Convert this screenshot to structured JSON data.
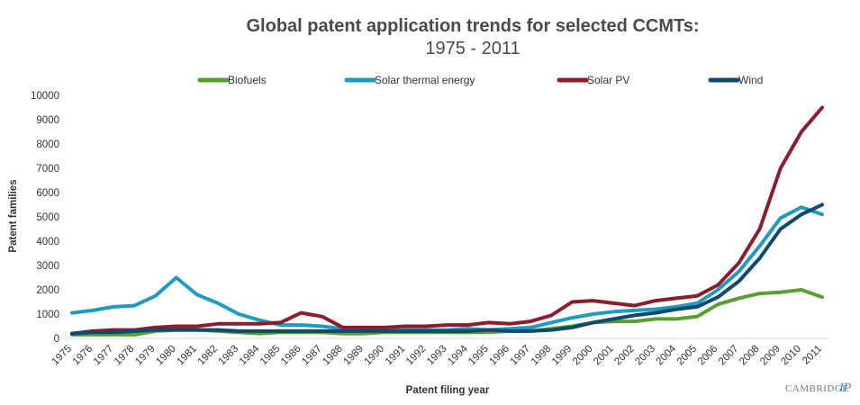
{
  "chart_data": {
    "type": "line",
    "title": "Global patent application trends for selected CCMTs:",
    "subtitle": "1975 - 2011",
    "xlabel": "Patent filing year",
    "ylabel": "Patent families",
    "ylim": [
      0,
      10000
    ],
    "yticks": [
      "0",
      "1000",
      "2000",
      "3000",
      "4000",
      "5000",
      "6000",
      "7000",
      "8000",
      "9000",
      "10000"
    ],
    "x": [
      "1975",
      "1976",
      "1977",
      "1978",
      "1979",
      "1980",
      "1981",
      "1982",
      "1983",
      "1984",
      "1985",
      "1986",
      "1987",
      "1988",
      "1989",
      "1990",
      "1991",
      "1992",
      "1993",
      "1994",
      "1995",
      "1996",
      "1997",
      "1998",
      "1999",
      "2000",
      "2001",
      "2002",
      "2003",
      "2004",
      "2005",
      "2006",
      "2007",
      "2008",
      "2009",
      "2010",
      "2011"
    ],
    "grid": false,
    "legend_position": "top",
    "series": [
      {
        "name": "Biofuels",
        "color": "#5a9e2f",
        "values": [
          150,
          150,
          150,
          150,
          300,
          350,
          350,
          300,
          250,
          200,
          250,
          250,
          250,
          200,
          200,
          250,
          250,
          250,
          250,
          250,
          250,
          300,
          300,
          400,
          500,
          650,
          700,
          700,
          800,
          800,
          900,
          1400,
          1650,
          1850,
          1900,
          2000,
          1700
        ]
      },
      {
        "name": "Solar thermal energy",
        "color": "#1f9bc0",
        "values": [
          1050,
          1150,
          1300,
          1350,
          1750,
          2500,
          1800,
          1450,
          1000,
          750,
          550,
          550,
          500,
          400,
          350,
          350,
          350,
          350,
          350,
          400,
          350,
          400,
          450,
          650,
          850,
          1000,
          1100,
          1150,
          1200,
          1300,
          1450,
          2000,
          2750,
          3800,
          4950,
          5400,
          5100
        ]
      },
      {
        "name": "Solar PV",
        "color": "#8c1d2e",
        "values": [
          200,
          300,
          350,
          350,
          450,
          500,
          500,
          600,
          600,
          600,
          650,
          1050,
          900,
          450,
          450,
          450,
          500,
          500,
          550,
          550,
          650,
          600,
          700,
          950,
          1500,
          1550,
          1450,
          1350,
          1550,
          1650,
          1750,
          2200,
          3100,
          4500,
          7000,
          8500,
          9500
        ]
      },
      {
        "name": "Wind",
        "color": "#0d4a6e",
        "values": [
          200,
          250,
          250,
          300,
          350,
          350,
          350,
          350,
          300,
          300,
          300,
          300,
          300,
          300,
          300,
          300,
          300,
          300,
          300,
          300,
          350,
          300,
          300,
          350,
          450,
          650,
          800,
          950,
          1050,
          1200,
          1300,
          1700,
          2350,
          3300,
          4500,
          5100,
          5500
        ]
      }
    ]
  },
  "branding": {
    "logo_text": "CAMBRIDGE",
    "logo_ip": "IP"
  }
}
